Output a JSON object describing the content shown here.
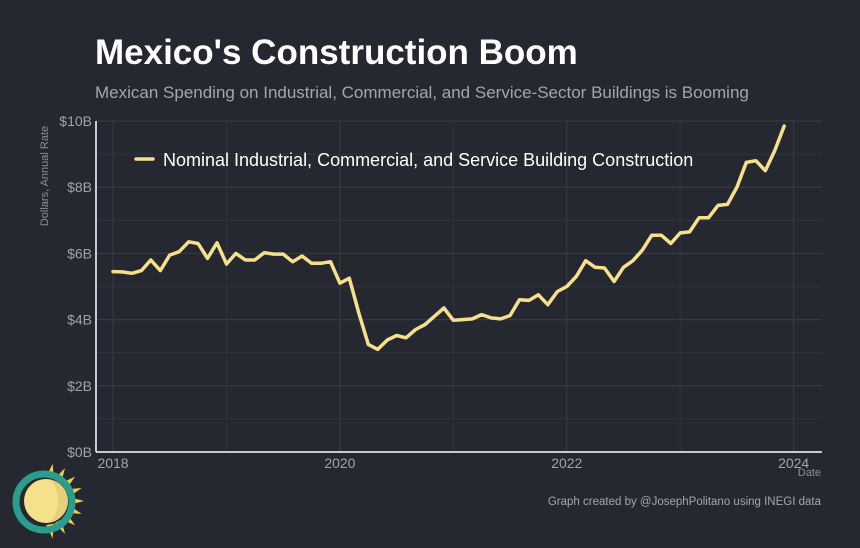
{
  "chart_data": {
    "type": "line",
    "title": "Mexico's Construction Boom",
    "subtitle": "Mexican Spending on Industrial, Commercial, and Service-Sector Buildings is Booming",
    "ylabel": "Dollars, Annual Rate",
    "xlabel": "Date",
    "ylim": [
      0,
      10
    ],
    "xlim": [
      2017.85,
      2024.25
    ],
    "y_ticks": [
      {
        "value": 0,
        "label": "$0B"
      },
      {
        "value": 2,
        "label": "$2B"
      },
      {
        "value": 4,
        "label": "$4B"
      },
      {
        "value": 6,
        "label": "$6B"
      },
      {
        "value": 8,
        "label": "$8B"
      },
      {
        "value": 10,
        "label": "$10B"
      }
    ],
    "x_ticks": [
      {
        "value": 2018,
        "label": "2018"
      },
      {
        "value": 2020,
        "label": "2020"
      },
      {
        "value": 2022,
        "label": "2022"
      },
      {
        "value": 2024,
        "label": "2024"
      }
    ],
    "grid": true,
    "legend_position": "top-left",
    "series": [
      {
        "name": "Nominal Industrial, Commercial, and Service Building Construction",
        "color": "#f7e08c",
        "x": [
          2018.0,
          2018.083,
          2018.167,
          2018.25,
          2018.333,
          2018.417,
          2018.5,
          2018.583,
          2018.667,
          2018.75,
          2018.833,
          2018.917,
          2019.0,
          2019.083,
          2019.167,
          2019.25,
          2019.333,
          2019.417,
          2019.5,
          2019.583,
          2019.667,
          2019.75,
          2019.833,
          2019.917,
          2020.0,
          2020.083,
          2020.167,
          2020.25,
          2020.333,
          2020.417,
          2020.5,
          2020.583,
          2020.667,
          2020.75,
          2020.833,
          2020.917,
          2021.0,
          2021.083,
          2021.167,
          2021.25,
          2021.333,
          2021.417,
          2021.5,
          2021.583,
          2021.667,
          2021.75,
          2021.833,
          2021.917,
          2022.0,
          2022.083,
          2022.167,
          2022.25,
          2022.333,
          2022.417,
          2022.5,
          2022.583,
          2022.667,
          2022.75,
          2022.833,
          2022.917,
          2023.0,
          2023.083,
          2023.167,
          2023.25,
          2023.333,
          2023.417,
          2023.5,
          2023.583,
          2023.667,
          2023.75,
          2023.833,
          2023.917
        ],
        "values": [
          5.45,
          5.44,
          5.4,
          5.48,
          5.8,
          5.48,
          5.95,
          6.05,
          6.35,
          6.3,
          5.85,
          6.32,
          5.68,
          6.0,
          5.8,
          5.8,
          6.02,
          5.98,
          5.98,
          5.75,
          5.92,
          5.7,
          5.7,
          5.75,
          5.1,
          5.25,
          4.2,
          3.25,
          3.1,
          3.38,
          3.52,
          3.45,
          3.7,
          3.85,
          4.1,
          4.35,
          3.98,
          4.0,
          4.02,
          4.15,
          4.05,
          4.02,
          4.12,
          4.6,
          4.58,
          4.75,
          4.45,
          4.85,
          5.0,
          5.3,
          5.78,
          5.58,
          5.56,
          5.15,
          5.58,
          5.78,
          6.1,
          6.55,
          6.55,
          6.3,
          6.62,
          6.65,
          7.08,
          7.08,
          7.45,
          7.48,
          8.0,
          8.75,
          8.8,
          8.5,
          9.1,
          9.85
        ]
      }
    ]
  },
  "caption": "Graph created by @JosephPolitano using INEGI data",
  "logo": {
    "name": "sun-logo",
    "colors": {
      "ring": "#2a9d8f",
      "sun": "#f7e08c",
      "rays": "#f2cf4a"
    }
  }
}
